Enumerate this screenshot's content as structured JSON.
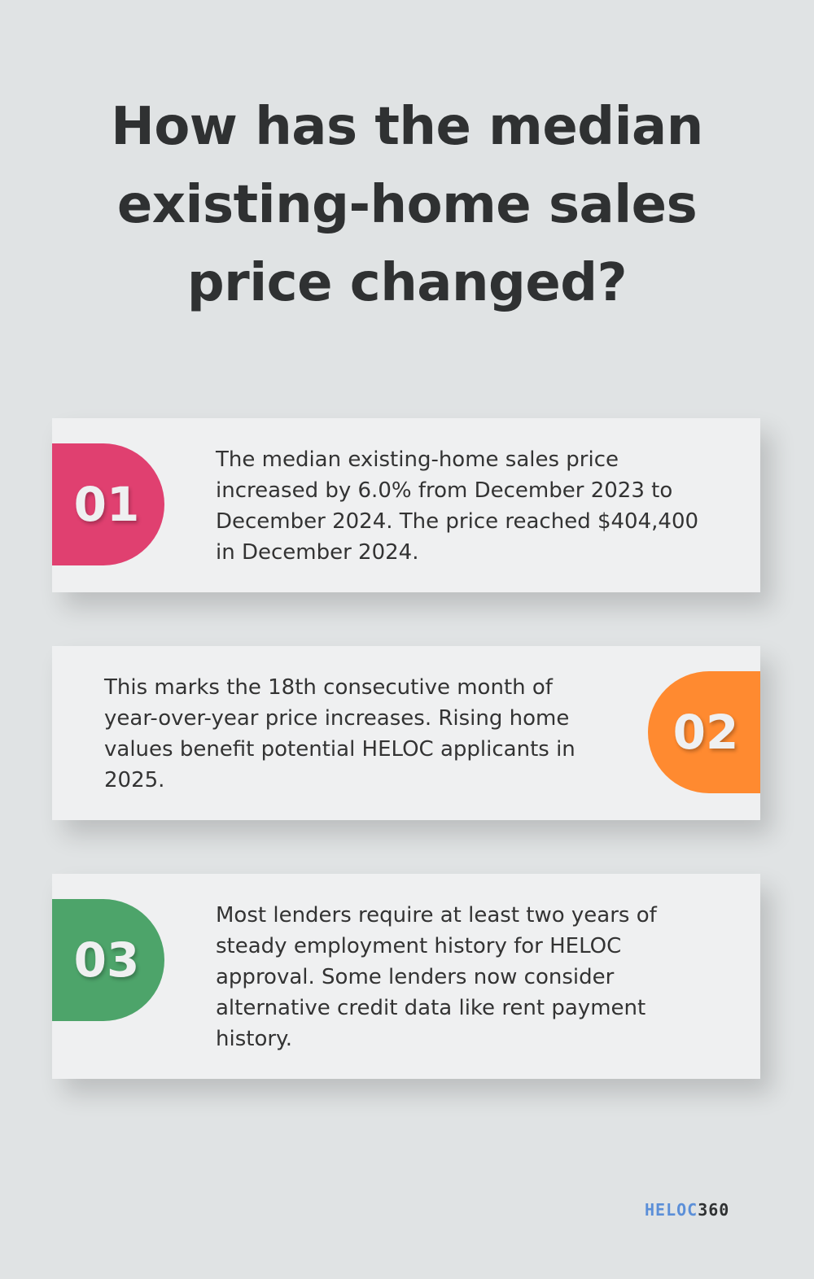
{
  "title": "How has the median existing-home sales price changed?",
  "cards": [
    {
      "number": "01",
      "text": "The median existing-home sales price increased by 6.0% from December 2023 to December 2024. The price reached $404,400 in December 2024.",
      "color": "#e04070"
    },
    {
      "number": "02",
      "text": "This marks the 18th consecutive month of year-over-year price increases. Rising home values benefit potential HELOC applicants in 2025.",
      "color": "#ff8a30"
    },
    {
      "number": "03",
      "text": "Most lenders require at least two years of steady employment history for HELOC approval. Some lenders now consider alternative credit data like rent payment history.",
      "color": "#4da46a"
    }
  ],
  "logo": {
    "part1": "HELOC",
    "part2": "360",
    "icon": "heloc360-logo"
  }
}
